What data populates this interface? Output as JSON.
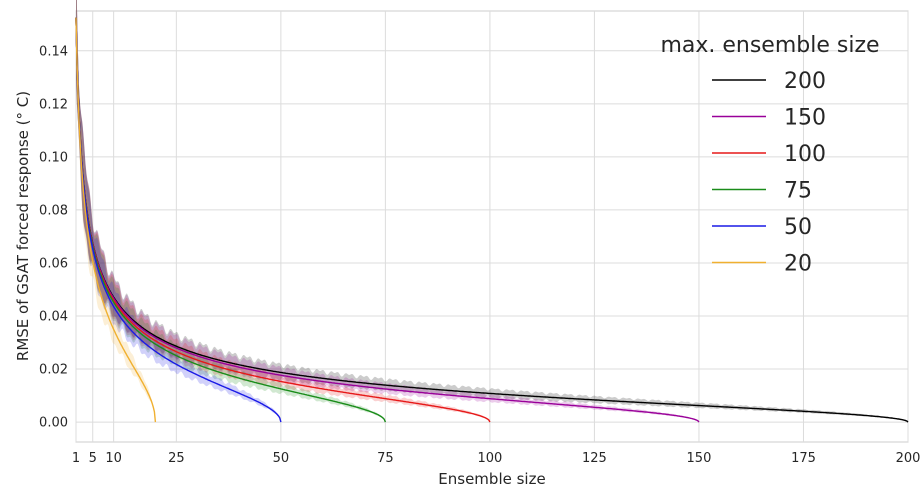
{
  "chart_data": {
    "type": "line",
    "xlabel": "Ensemble size",
    "ylabel": "RMSE of GSAT forced response (° C)",
    "xlim": [
      1,
      200
    ],
    "ylim": [
      -0.0075,
      0.155
    ],
    "xticks": [
      1,
      5,
      10,
      25,
      50,
      75,
      100,
      125,
      150,
      175,
      200
    ],
    "xtick_labels": [
      "1",
      "5",
      "10",
      "25",
      "50",
      "75",
      "100",
      "125",
      "150",
      "175",
      "200"
    ],
    "yticks": [
      0.0,
      0.02,
      0.04,
      0.06,
      0.08,
      0.1,
      0.12,
      0.14
    ],
    "ytick_labels": [
      "0.00",
      "0.02",
      "0.04",
      "0.06",
      "0.08",
      "0.10",
      "0.12",
      "0.14"
    ],
    "grid": true,
    "shaded_spread": true,
    "legend": {
      "title": "max. ensemble size",
      "placement": "top-right"
    },
    "series": [
      {
        "name": "200",
        "color": "#000000",
        "max_n": 200
      },
      {
        "name": "150",
        "color": "#990099",
        "max_n": 150
      },
      {
        "name": "100",
        "color": "#e61919",
        "max_n": 100
      },
      {
        "name": "75",
        "color": "#1a8c1a",
        "max_n": 75
      },
      {
        "name": "50",
        "color": "#1a1ae6",
        "max_n": 50
      },
      {
        "name": "20",
        "color": "#f0b030",
        "max_n": 20
      }
    ]
  }
}
